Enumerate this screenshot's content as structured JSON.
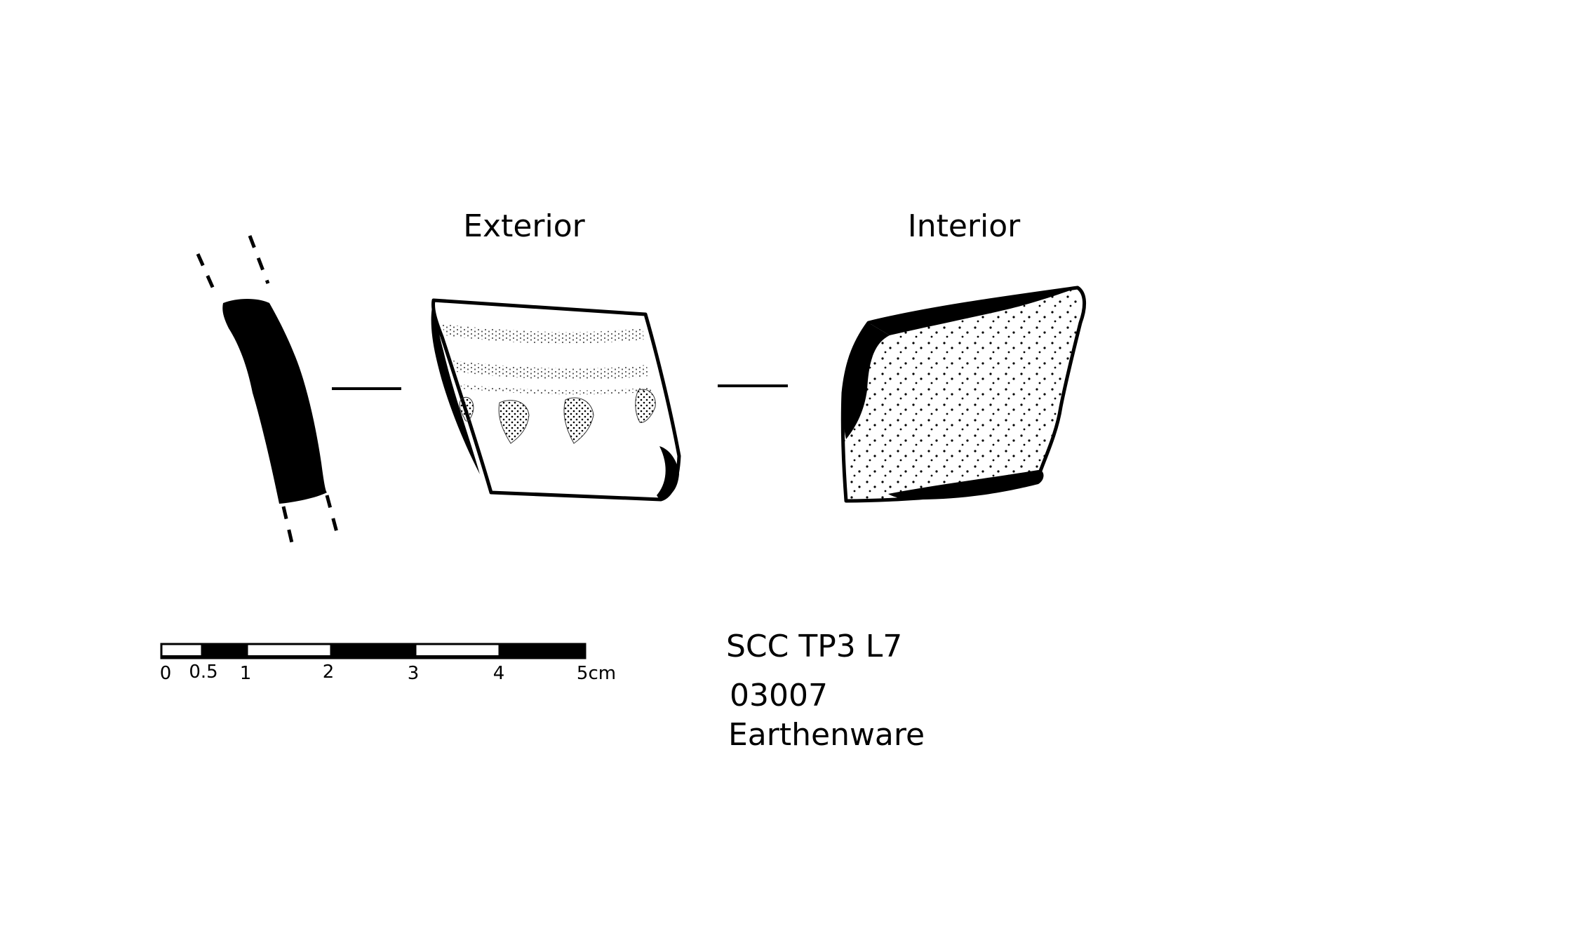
{
  "views": {
    "exterior_label": "Exterior",
    "interior_label": "Interior"
  },
  "scale_bar": {
    "ticks": [
      "0",
      "0.5",
      "1",
      "2",
      "3",
      "4",
      "5cm"
    ],
    "segment_colors": [
      "#ffffff",
      "#000000",
      "#ffffff",
      "#000000",
      "#ffffff",
      "#000000"
    ]
  },
  "specimen": {
    "context": "SCC TP3 L7",
    "number": "03007",
    "material": "Earthenware"
  }
}
